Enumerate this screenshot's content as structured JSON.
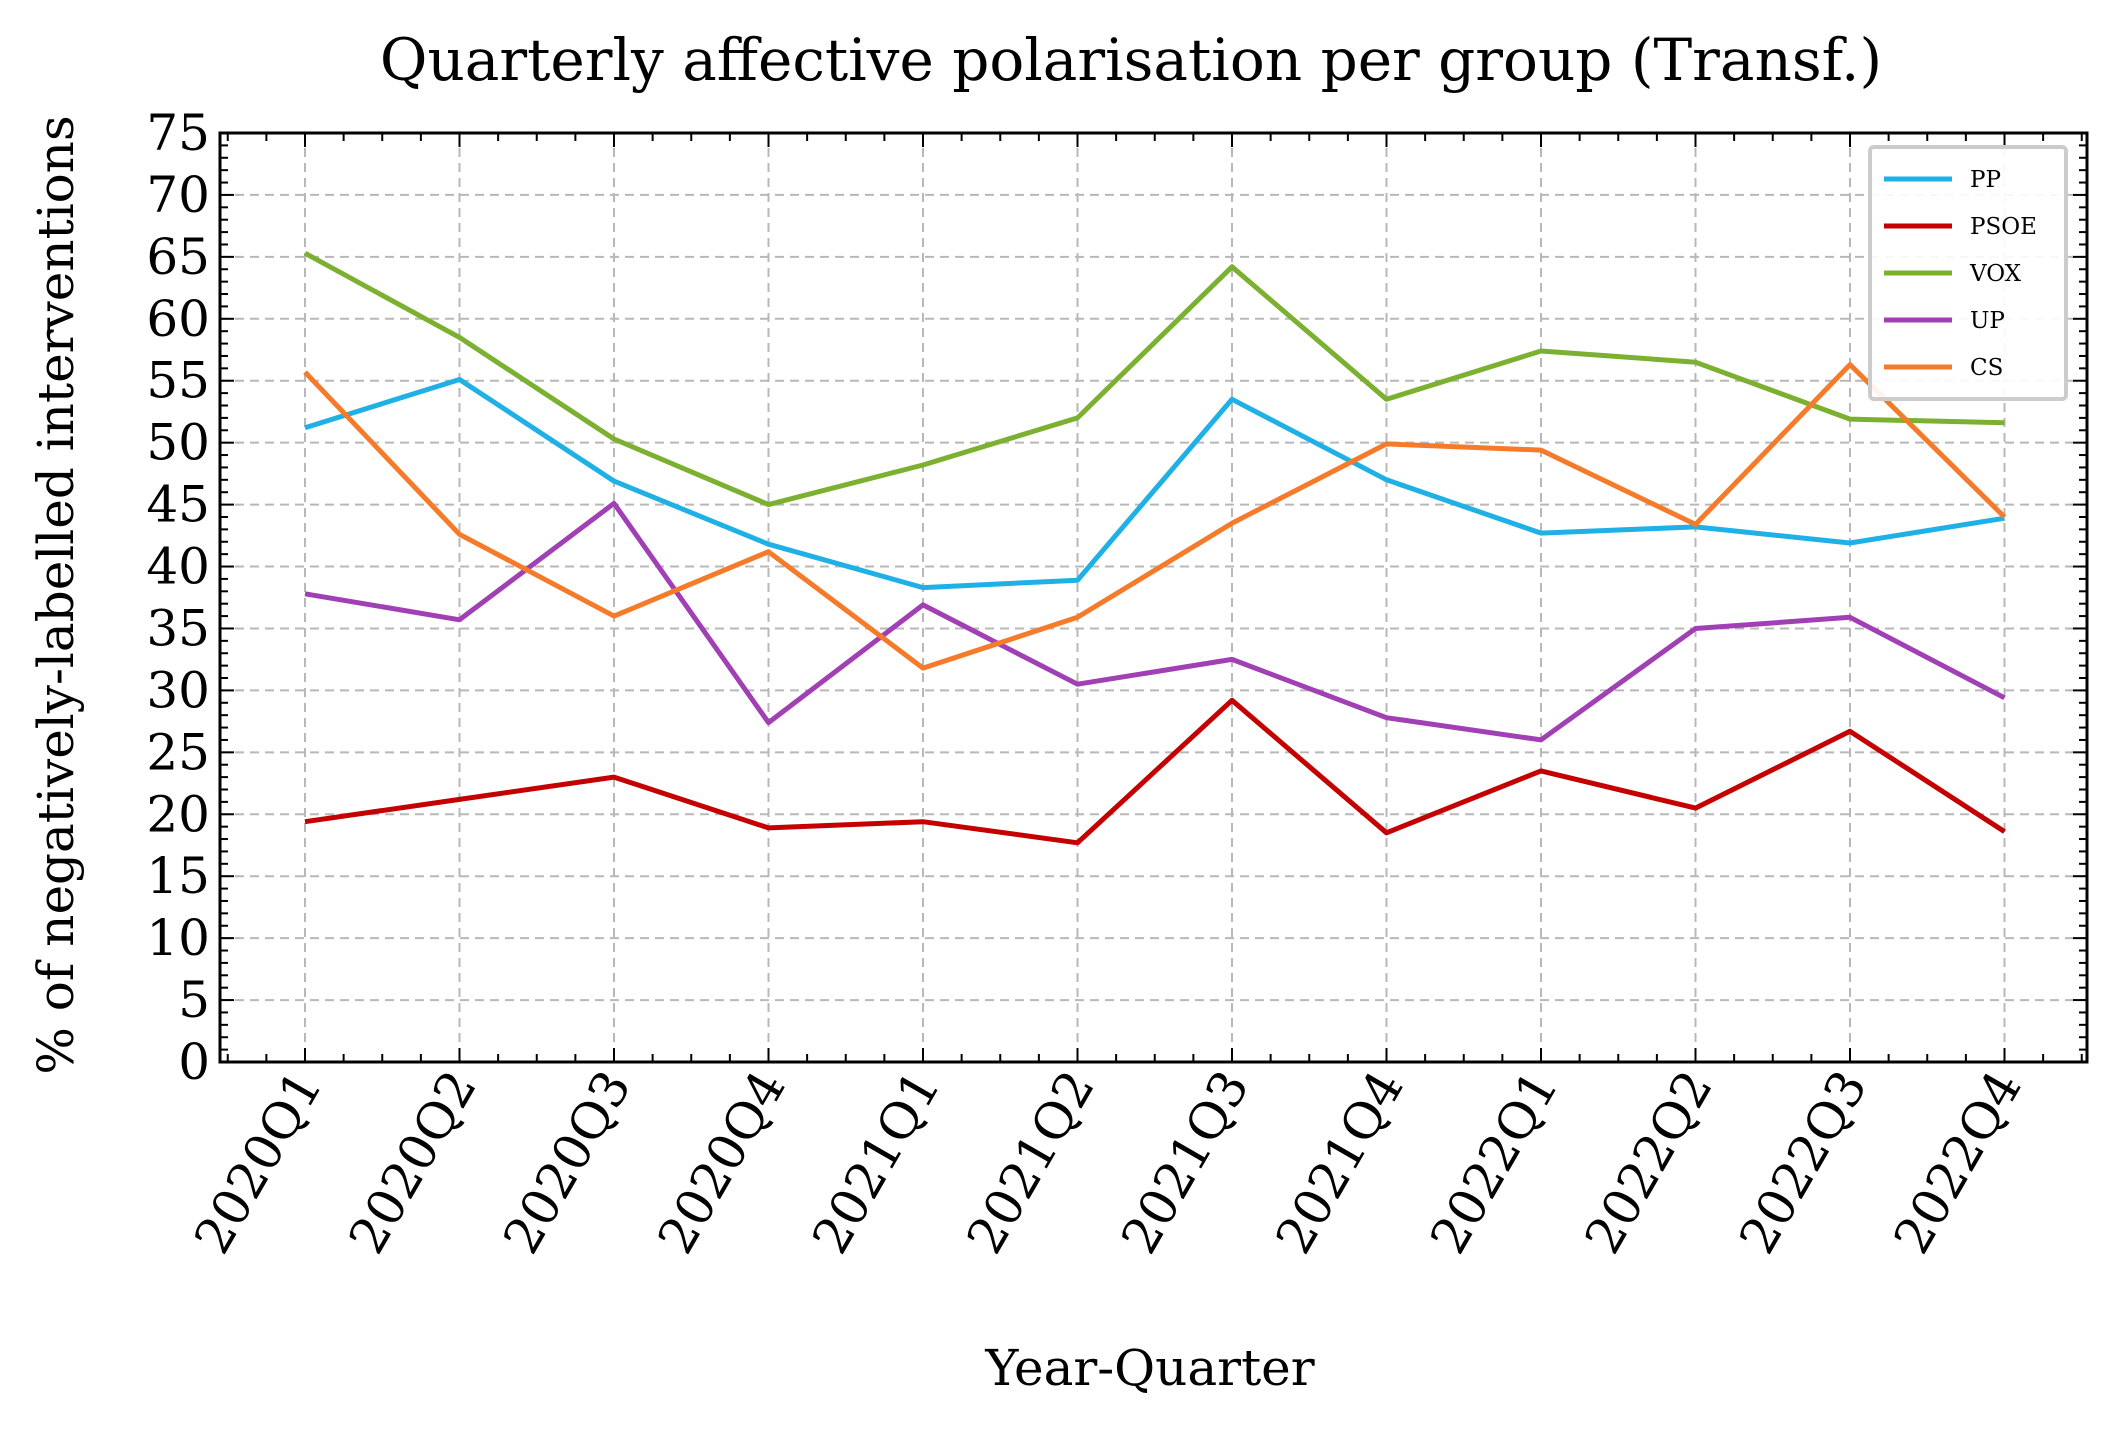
{
  "chart_data": {
    "type": "line",
    "title": "Quarterly affective polarisation per group (Transf.)",
    "xlabel": "Year-Quarter",
    "ylabel": "% of negatively-labelled interventions",
    "categories": [
      "2020Q1",
      "2020Q2",
      "2020Q3",
      "2020Q4",
      "2021Q1",
      "2021Q2",
      "2021Q3",
      "2021Q4",
      "2022Q1",
      "2022Q2",
      "2022Q3",
      "2022Q4"
    ],
    "ylim": [
      0,
      75
    ],
    "yticks": [
      "0",
      "5",
      "10",
      "15",
      "20",
      "25",
      "30",
      "35",
      "40",
      "45",
      "50",
      "55",
      "60",
      "65",
      "70",
      "75"
    ],
    "grid": true,
    "legend_position": "top-right",
    "series": [
      {
        "name": "PP",
        "color": "#1fb0e6",
        "values": [
          51.2,
          55.1,
          46.9,
          41.8,
          38.3,
          38.9,
          53.5,
          47.0,
          42.7,
          43.2,
          41.9,
          43.9
        ]
      },
      {
        "name": "PSOE",
        "color": "#c40000",
        "values": [
          19.4,
          21.2,
          23.0,
          18.9,
          19.4,
          17.7,
          29.2,
          18.5,
          23.5,
          20.5,
          26.7,
          18.6
        ]
      },
      {
        "name": "VOX",
        "color": "#7cb030",
        "values": [
          65.3,
          58.5,
          50.3,
          45.0,
          48.2,
          52.0,
          64.2,
          53.5,
          57.4,
          56.5,
          51.9,
          51.6
        ]
      },
      {
        "name": "UP",
        "color": "#a040b4",
        "values": [
          37.8,
          35.7,
          45.1,
          27.4,
          36.9,
          30.5,
          32.5,
          27.8,
          26.0,
          35.0,
          35.9,
          29.4
        ]
      },
      {
        "name": "CS",
        "color": "#f57b2a",
        "values": [
          55.7,
          42.6,
          36.0,
          41.2,
          31.8,
          35.9,
          43.5,
          49.9,
          49.4,
          43.4,
          56.3,
          44.0
        ]
      }
    ]
  }
}
